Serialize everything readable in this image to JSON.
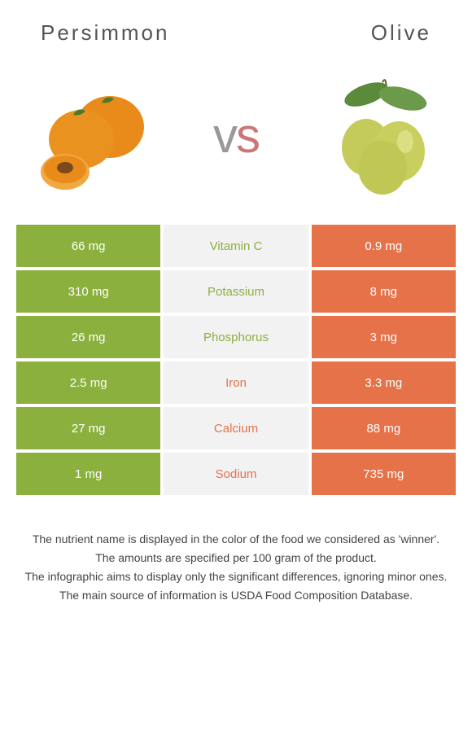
{
  "header": {
    "left_title": "Persimmon",
    "right_title": "Olive",
    "vs_text": "vs"
  },
  "colors": {
    "left": "#8bb03e",
    "right": "#e6724a",
    "mid_bg": "#f2f2f2",
    "title_color": "#555"
  },
  "images": {
    "left": {
      "name": "persimmon",
      "body_color": "#e88b1a",
      "leaf_color": "#4a7a2a",
      "cut_color": "#f0a840"
    },
    "right": {
      "name": "olive",
      "body_color": "#c4cb5a",
      "leaf_color": "#5a8a3a",
      "highlight": "#e0e090"
    }
  },
  "rows": [
    {
      "left": "66 mg",
      "label": "Vitamin C",
      "right": "0.9 mg",
      "winner": "left"
    },
    {
      "left": "310 mg",
      "label": "Potassium",
      "right": "8 mg",
      "winner": "left"
    },
    {
      "left": "26 mg",
      "label": "Phosphorus",
      "right": "3 mg",
      "winner": "left"
    },
    {
      "left": "2.5 mg",
      "label": "Iron",
      "right": "3.3 mg",
      "winner": "right"
    },
    {
      "left": "27 mg",
      "label": "Calcium",
      "right": "88 mg",
      "winner": "right"
    },
    {
      "left": "1 mg",
      "label": "Sodium",
      "right": "735 mg",
      "winner": "right"
    }
  ],
  "footer": {
    "line1": "The nutrient name is displayed in the color of the food we considered as 'winner'.",
    "line2": "The amounts are specified per 100 gram of the product.",
    "line3": "The infographic aims to display only the significant differences, ignoring minor ones.",
    "line4": "The main source of information is USDA Food Composition Database."
  }
}
